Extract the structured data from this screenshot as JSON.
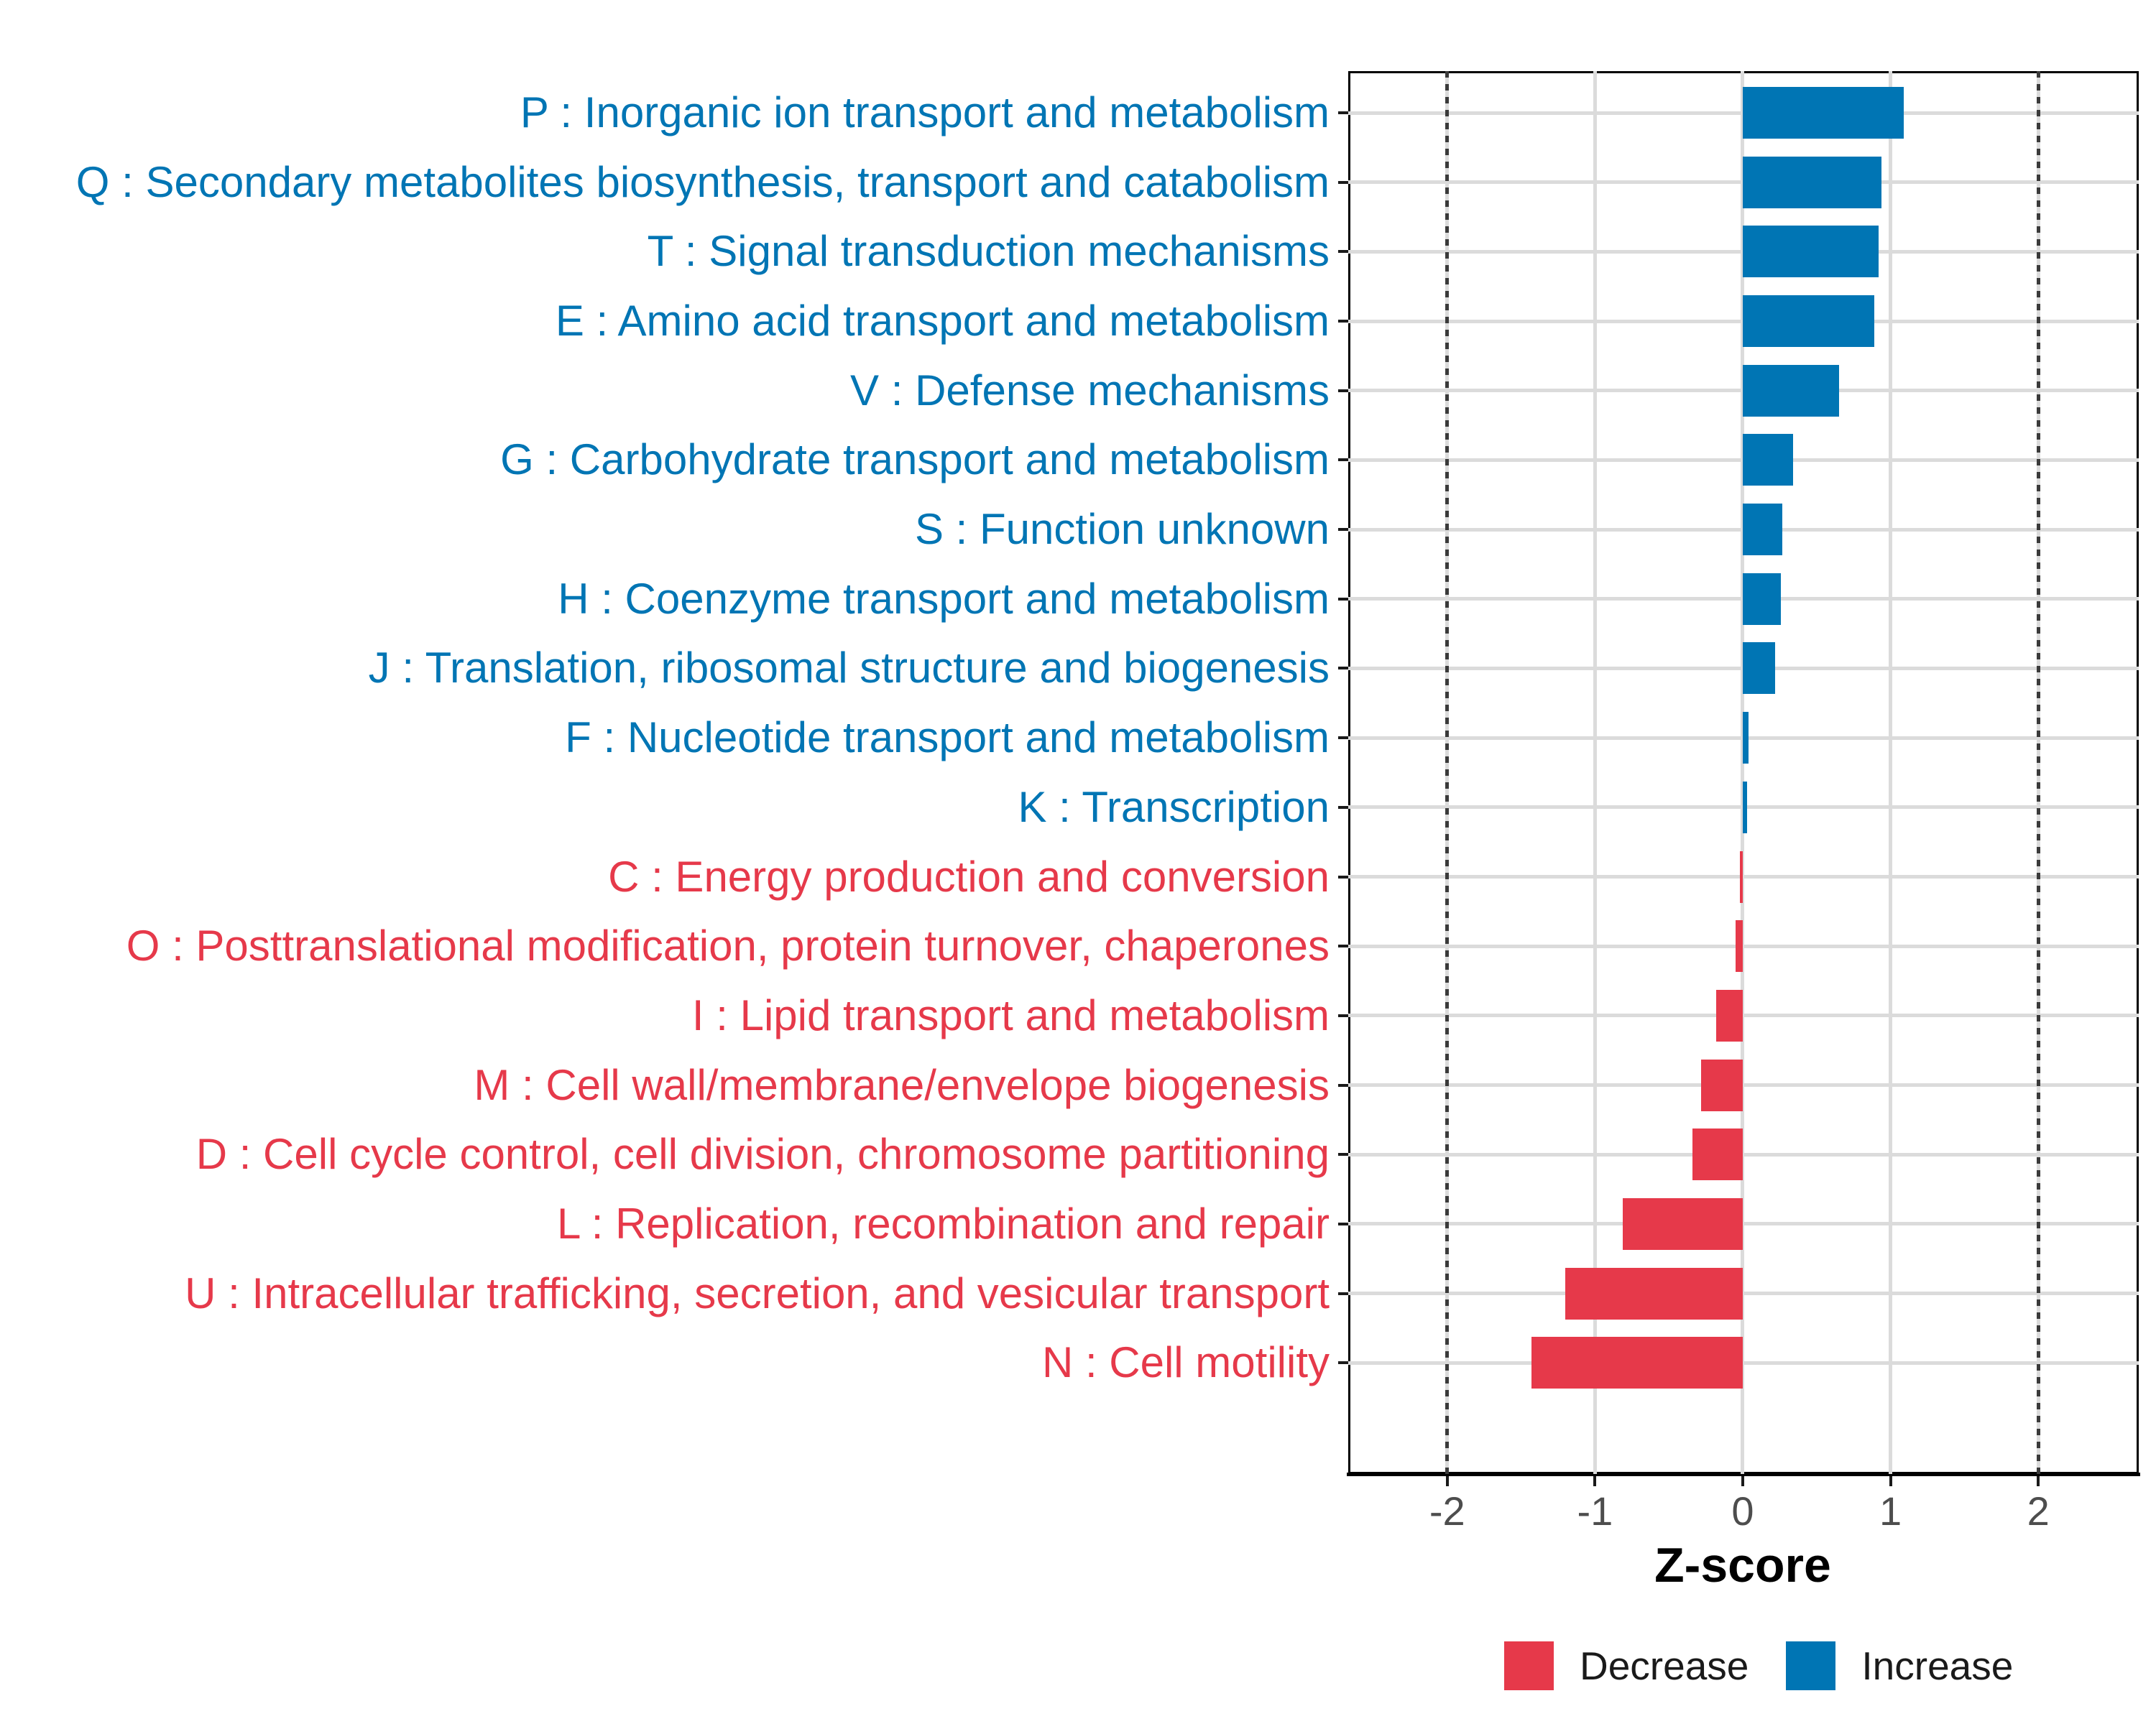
{
  "chart_data": {
    "type": "bar",
    "orientation": "horizontal",
    "title": "",
    "xlabel": "Z-score",
    "ylabel": "",
    "xlim": [
      -2.67,
      2.68
    ],
    "x_ticks": [
      -2,
      -1,
      0,
      1,
      2
    ],
    "x_tick_labels": [
      "-2",
      "-1",
      "0",
      "1",
      "2"
    ],
    "reference_lines": [
      -2,
      2
    ],
    "grid": true,
    "legend_position": "bottom-right",
    "categories": [
      {
        "code": "P",
        "label": "P : Inorganic ion transport and metabolism",
        "value": 1.09,
        "direction": "Increase"
      },
      {
        "code": "Q",
        "label": "Q : Secondary metabolites biosynthesis, transport and catabolism",
        "value": 0.94,
        "direction": "Increase"
      },
      {
        "code": "T",
        "label": "T : Signal transduction mechanisms",
        "value": 0.92,
        "direction": "Increase"
      },
      {
        "code": "E",
        "label": "E : Amino acid transport and metabolism",
        "value": 0.89,
        "direction": "Increase"
      },
      {
        "code": "V",
        "label": "V : Defense mechanisms",
        "value": 0.65,
        "direction": "Increase"
      },
      {
        "code": "G",
        "label": "G : Carbohydrate transport and metabolism",
        "value": 0.34,
        "direction": "Increase"
      },
      {
        "code": "S",
        "label": "S : Function unknown",
        "value": 0.27,
        "direction": "Increase"
      },
      {
        "code": "H",
        "label": "H : Coenzyme transport and metabolism",
        "value": 0.26,
        "direction": "Increase"
      },
      {
        "code": "J",
        "label": "J : Translation, ribosomal structure and biogenesis",
        "value": 0.22,
        "direction": "Increase"
      },
      {
        "code": "F",
        "label": "F : Nucleotide transport and metabolism",
        "value": 0.04,
        "direction": "Increase"
      },
      {
        "code": "K",
        "label": "K : Transcription",
        "value": 0.03,
        "direction": "Increase"
      },
      {
        "code": "C",
        "label": "C : Energy production and conversion",
        "value": -0.02,
        "direction": "Decrease"
      },
      {
        "code": "O",
        "label": "O : Posttranslational modification, protein turnover, chaperones",
        "value": -0.05,
        "direction": "Decrease"
      },
      {
        "code": "I",
        "label": "I : Lipid transport and metabolism",
        "value": -0.18,
        "direction": "Decrease"
      },
      {
        "code": "M",
        "label": "M : Cell wall/membrane/envelope biogenesis",
        "value": -0.28,
        "direction": "Decrease"
      },
      {
        "code": "D",
        "label": "D : Cell cycle control, cell division, chromosome partitioning",
        "value": -0.34,
        "direction": "Decrease"
      },
      {
        "code": "L",
        "label": "L : Replication, recombination and repair",
        "value": -0.81,
        "direction": "Decrease"
      },
      {
        "code": "U",
        "label": "U : Intracellular trafficking, secretion, and vesicular transport",
        "value": -1.2,
        "direction": "Decrease"
      },
      {
        "code": "N",
        "label": "N : Cell motility",
        "value": -1.43,
        "direction": "Decrease"
      }
    ]
  },
  "axis": {
    "title": "Z-score"
  },
  "legend": {
    "decrease_label": "Decrease",
    "increase_label": "Increase"
  },
  "colors": {
    "increase": "#0075B4",
    "decrease": "#E6394A",
    "grid": "#DBDBDB",
    "reference_line": "#3A3A3A",
    "tick_label": "#4D4D4D",
    "axis": "#000000"
  }
}
